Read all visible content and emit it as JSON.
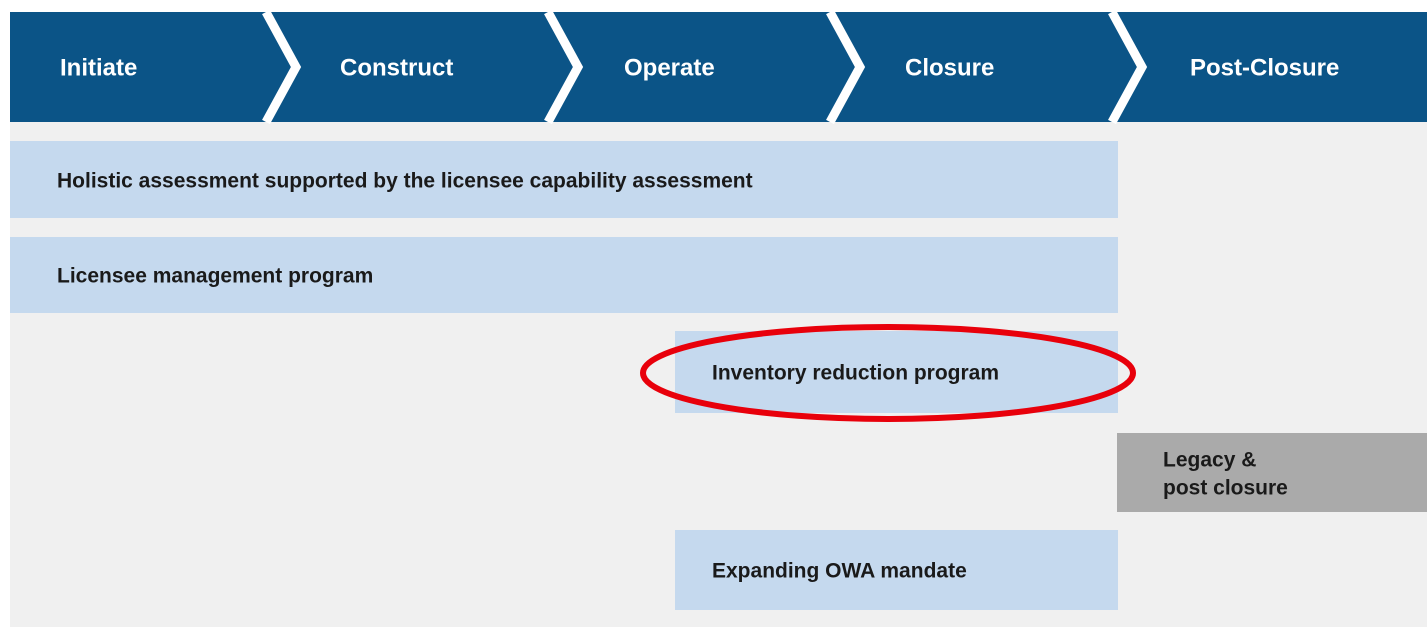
{
  "stages": [
    "Initiate",
    "Construct",
    "Operate",
    "Closure",
    "Post-Closure"
  ],
  "rows": [
    {
      "label": "Holistic assessment supported by the licensee capability assessment"
    },
    {
      "label": "Licensee management program"
    },
    {
      "label": "Inventory reduction program"
    },
    {
      "label_lines": [
        "Legacy &",
        "post closure"
      ]
    },
    {
      "label": "Expanding OWA mandate"
    }
  ]
}
